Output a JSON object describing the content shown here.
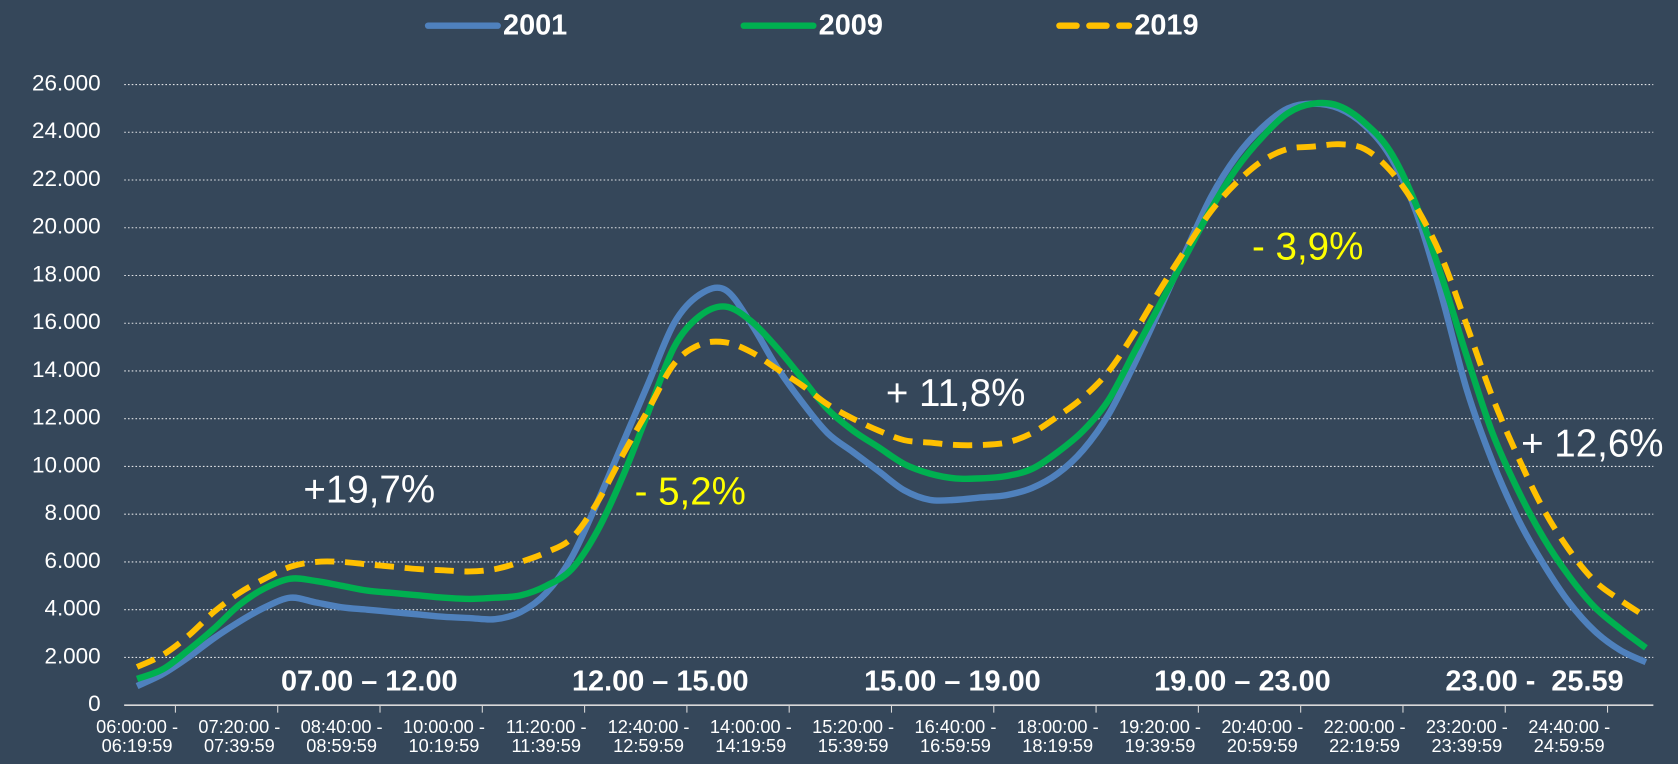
{
  "chart_data": {
    "type": "line",
    "categories": [
      "06:00:00 - 06:19:59",
      null,
      null,
      null,
      "07:20:00 - 07:39:59",
      null,
      null,
      null,
      "08:40:00 - 08:59:59",
      null,
      null,
      null,
      "10:00:00 - 10:19:59",
      null,
      null,
      null,
      "11:20:00 - 11:39:59",
      null,
      null,
      null,
      "12:40:00 - 12:59:59",
      null,
      null,
      null,
      "14:00:00 - 14:19:59",
      null,
      null,
      null,
      "15:20:00 - 15:39:59",
      null,
      null,
      null,
      "16:40:00 - 16:59:59",
      null,
      null,
      null,
      "18:00:00 - 18:19:59",
      null,
      null,
      null,
      "19:20:00 - 19:39:59",
      null,
      null,
      null,
      "20:40:00 - 20:59:59",
      null,
      null,
      null,
      "22:00:00 - 22:19:59",
      null,
      null,
      null,
      "23:20:00 - 23:39:59",
      null,
      null,
      null,
      "24:40:00 - 24:59:59",
      null,
      null,
      null
    ],
    "series": [
      {
        "name": "2001",
        "color": "#4f81bd",
        "dashed": false,
        "values": [
          800,
          1300,
          2000,
          2800,
          3500,
          4100,
          4500,
          4300,
          4100,
          4000,
          3900,
          3800,
          3700,
          3650,
          3600,
          3900,
          4700,
          6200,
          8500,
          11000,
          13500,
          16000,
          17200,
          17400,
          16000,
          14200,
          12700,
          11400,
          10600,
          9800,
          9000,
          8600,
          8600,
          8700,
          8800,
          9100,
          9700,
          10700,
          12200,
          14300,
          16600,
          19000,
          21300,
          23000,
          24200,
          25000,
          25200,
          25000,
          24300,
          23000,
          20700,
          17200,
          13200,
          10200,
          7800,
          5900,
          4300,
          3100,
          2300,
          1800
        ]
      },
      {
        "name": "2009",
        "color": "#00b050",
        "dashed": false,
        "values": [
          1100,
          1500,
          2300,
          3200,
          4200,
          4900,
          5300,
          5200,
          5000,
          4800,
          4700,
          4600,
          4500,
          4450,
          4500,
          4600,
          5000,
          5700,
          7300,
          9600,
          12300,
          15000,
          16300,
          16700,
          16100,
          15000,
          13700,
          12400,
          11500,
          10800,
          10100,
          9700,
          9500,
          9500,
          9600,
          9900,
          10600,
          11500,
          12800,
          14800,
          16800,
          18800,
          20800,
          22500,
          23800,
          24800,
          25200,
          25100,
          24400,
          23200,
          21000,
          18000,
          14600,
          11400,
          9000,
          7000,
          5400,
          4100,
          3200,
          2400
        ]
      },
      {
        "name": "2019",
        "color": "#ffc000",
        "dashed": true,
        "values": [
          1600,
          2100,
          2900,
          3900,
          4700,
          5300,
          5800,
          6000,
          6000,
          5900,
          5800,
          5700,
          5650,
          5600,
          5700,
          6000,
          6400,
          7000,
          8500,
          10500,
          12400,
          14300,
          15100,
          15200,
          14800,
          14100,
          13400,
          12600,
          12000,
          11500,
          11100,
          11000,
          10900,
          10900,
          11000,
          11400,
          12100,
          12900,
          14000,
          15600,
          17400,
          19100,
          20700,
          21900,
          22800,
          23300,
          23400,
          23500,
          23300,
          22400,
          20900,
          18800,
          15900,
          12900,
          10400,
          8200,
          6500,
          5200,
          4400,
          3700
        ]
      }
    ],
    "ylim": [
      0,
      26000
    ],
    "yticks": [
      0,
      {
        "value": 2000,
        "label": "2.000"
      },
      {
        "value": 4000,
        "label": "4.000"
      },
      {
        "value": 6000,
        "label": "6.000"
      },
      {
        "value": 8000,
        "label": "8.000"
      },
      {
        "value": 10000,
        "label": "10.000"
      },
      {
        "value": 12000,
        "label": "12.000"
      },
      {
        "value": 14000,
        "label": "14.000"
      },
      {
        "value": 16000,
        "label": "16.000"
      },
      {
        "value": 18000,
        "label": "18.000"
      },
      {
        "value": 20000,
        "label": "20.000"
      },
      {
        "value": 22000,
        "label": "22.000"
      },
      {
        "value": 24000,
        "label": "24.000"
      },
      {
        "value": 26000,
        "label": "26.000"
      }
    ],
    "grid": true,
    "legend": "top",
    "annotations": [
      {
        "text": "+19,7%",
        "color": "#ffffff"
      },
      {
        "text": "- 5,2%",
        "color": "#ffff00"
      },
      {
        "text": "+ 11,8%",
        "color": "#ffffff"
      },
      {
        "text": "- 3,9%",
        "color": "#ffff00"
      },
      {
        "text": "+ 12,6%",
        "color": "#ffffff"
      }
    ],
    "periods": [
      "07.00 – 12.00",
      "12.00 – 15.00",
      "15.00 – 19.00",
      "19.00 – 23.00",
      "23.00 -  25.59"
    ]
  }
}
